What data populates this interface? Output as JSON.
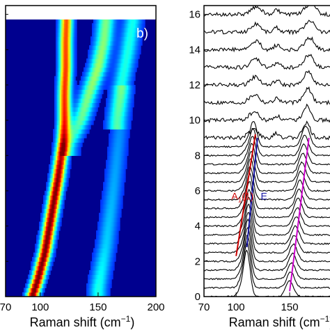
{
  "chart_data": [
    {
      "type": "heatmap",
      "panel_label": "b)",
      "xlabel": "Raman shift (cm",
      "xlabel_sup": "−1",
      "xlabel_close": ")",
      "xlim": [
        70,
        200
      ],
      "xticks": [
        70,
        100,
        150,
        200
      ],
      "xtick_labels": [
        "70",
        "100",
        "150",
        "200"
      ],
      "ylim": [
        0,
        16.5
      ],
      "colormap": "jet",
      "ridges": [
        {
          "name": "main",
          "x": [
            93,
            98,
            104,
            108,
            112,
            115,
            117,
            119,
            120,
            121,
            121,
            122,
            122,
            123
          ],
          "y": [
            0,
            1,
            2.5,
            4,
            5.5,
            6.6,
            7.5,
            8.3,
            8.9,
            10,
            11.5,
            13,
            14.5,
            16.5
          ],
          "peak": [
            1,
            1,
            1,
            1,
            1,
            0.98,
            0.95,
            0.9,
            0.85,
            0.82,
            0.8,
            0.78,
            0.76,
            0.74
          ]
        },
        {
          "name": "upper-branch",
          "x": [
            125,
            135,
            142,
            150,
            155,
            158
          ],
          "y": [
            8.5,
            10,
            11.5,
            13,
            14.5,
            16.5
          ],
          "peak": [
            0.25,
            0.38,
            0.42,
            0.45,
            0.42,
            0.4
          ]
        },
        {
          "name": "faint-right",
          "x": [
            150,
            157,
            163,
            168,
            172
          ],
          "y": [
            0.5,
            3,
            6,
            9,
            11.5
          ],
          "peak": [
            0.3,
            0.22,
            0.18,
            0.15,
            0.12
          ]
        },
        {
          "name": "far-right",
          "x": [
            165,
            170,
            176,
            182
          ],
          "y": [
            10,
            12,
            14,
            16.5
          ],
          "peak": [
            0.25,
            0.3,
            0.3,
            0.28
          ]
        }
      ]
    },
    {
      "type": "line",
      "xlabel": "Raman shift (cm",
      "xlabel_sup": "−1",
      "xlabel_close": ")",
      "xlim": [
        70,
        200
      ],
      "ylim": [
        0,
        16.5
      ],
      "xticks": [
        70,
        100,
        150,
        200
      ],
      "xtick_labels": [
        "70",
        "100",
        "150",
        "200"
      ],
      "yticks": [
        0,
        2,
        4,
        6,
        8,
        10,
        12,
        14,
        16
      ],
      "ytick_labels": [
        "0",
        "2",
        "4",
        "6",
        "8",
        "10",
        "12",
        "14",
        "16"
      ],
      "offsets": [
        0,
        0.5,
        1,
        1.5,
        2,
        2.5,
        3,
        3.5,
        4,
        4.5,
        5,
        5.5,
        6,
        6.5,
        7,
        7.5,
        8,
        8.5,
        9,
        10,
        11,
        12,
        13,
        14,
        15,
        16
      ],
      "modes": {
        "A1": [
          102,
          104,
          107,
          110,
          112,
          114,
          116,
          118
        ],
        "E": [
          110,
          111,
          112,
          113,
          115,
          117,
          119,
          120
        ]
      },
      "annotations": [
        {
          "text": "A",
          "sub": "1",
          "suffix": "(1)",
          "color": "#cc0000",
          "x": 106,
          "y": 5.5
        },
        {
          "text": "E",
          "sub": "",
          "suffix": "",
          "color": "#1a1aa8",
          "x": 126,
          "y": 5.5
        }
      ],
      "guide_lines": [
        {
          "name": "A1-guide",
          "color": "#cc0000",
          "x": [
            100,
            118
          ],
          "y": [
            2.3,
            9.2
          ]
        },
        {
          "name": "E-guide",
          "color": "#1a1aa8",
          "x": [
            110,
            120
          ],
          "y": [
            2.8,
            9.0
          ]
        },
        {
          "name": "high-mode-guide",
          "color": "#cc00cc",
          "x": [
            150,
            168
          ],
          "y": [
            0.3,
            9.0
          ]
        }
      ]
    }
  ]
}
